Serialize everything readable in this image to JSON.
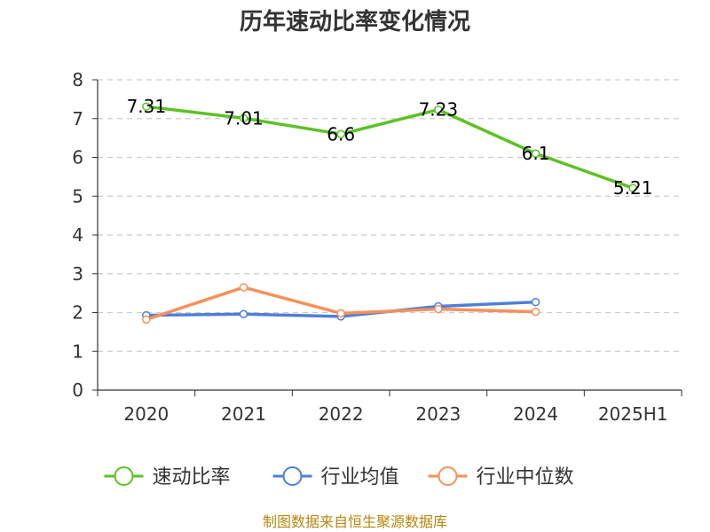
{
  "chart_data": {
    "type": "line",
    "title": "历年速动比率变化情况",
    "categories": [
      "2020",
      "2021",
      "2022",
      "2023",
      "2024",
      "2025H1"
    ],
    "ylim": [
      0,
      8
    ],
    "yticks": [
      0,
      1,
      2,
      3,
      4,
      5,
      6,
      7,
      8
    ],
    "grid": true,
    "legend_position": "bottom",
    "series": [
      {
        "name": "速动比率",
        "color": "#5cc224",
        "values": [
          7.31,
          7.01,
          6.6,
          7.23,
          6.1,
          5.21
        ],
        "labels": [
          "7.31",
          "7.01",
          "6.6",
          "7.23",
          "6.1",
          "5.21"
        ]
      },
      {
        "name": "行业均值",
        "color": "#4e7fd8",
        "values": [
          1.93,
          1.96,
          1.9,
          2.16,
          2.27,
          null
        ]
      },
      {
        "name": "行业中位数",
        "color": "#f7905a",
        "values": [
          1.82,
          2.65,
          1.98,
          2.09,
          2.02,
          null
        ]
      }
    ],
    "source": "制图数据来自恒生聚源数据库"
  }
}
